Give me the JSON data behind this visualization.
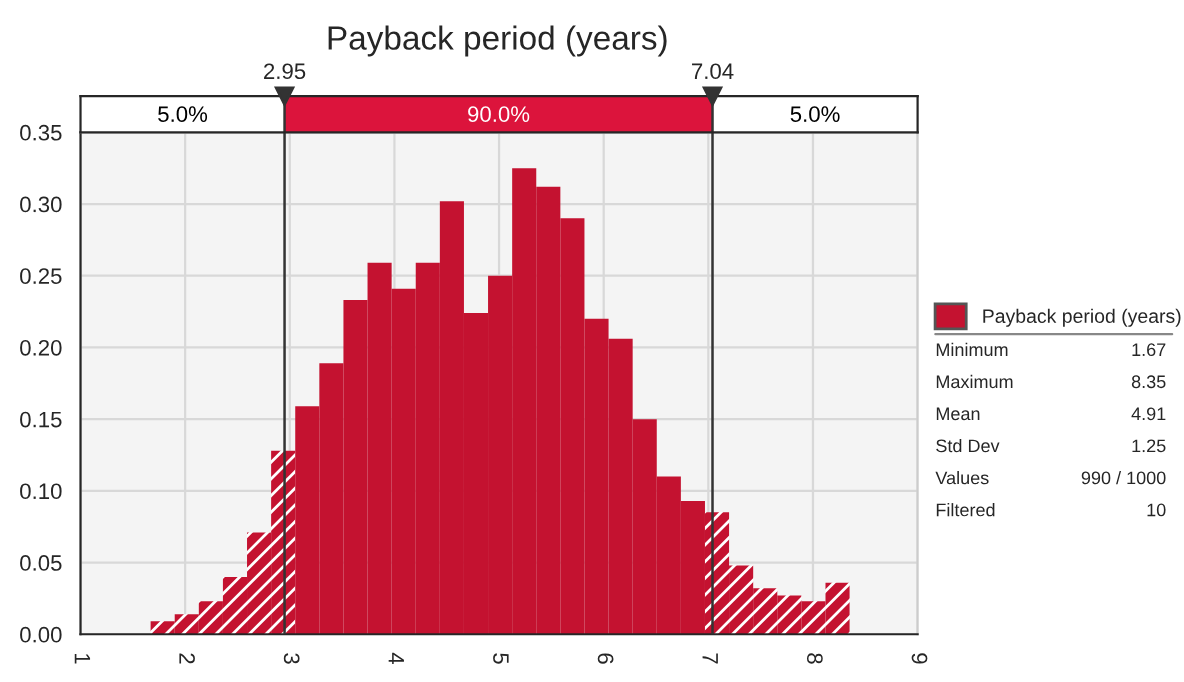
{
  "chart_data": {
    "type": "histogram",
    "title": "Payback period (years)",
    "bins": [
      1.67,
      1.9003,
      2.1307,
      2.361,
      2.5914,
      2.8217,
      3.0521,
      3.2824,
      3.5128,
      3.7431,
      3.9734,
      4.2038,
      4.4341,
      4.6645,
      4.8948,
      5.1252,
      5.3555,
      5.5859,
      5.8162,
      6.0466,
      6.2769,
      6.5072,
      6.7376,
      6.9679,
      7.1983,
      7.4286,
      7.659,
      7.8893,
      8.1197,
      8.35
    ],
    "series": [
      {
        "name": "Payback period (years)",
        "color": "#c41230",
        "values": [
          0.009,
          0.014,
          0.023,
          0.04,
          0.071,
          0.128,
          0.159,
          0.189,
          0.233,
          0.259,
          0.241,
          0.259,
          0.302,
          0.224,
          0.25,
          0.325,
          0.312,
          0.29,
          0.22,
          0.206,
          0.15,
          0.11,
          0.093,
          0.085,
          0.048,
          0.032,
          0.027,
          0.023,
          0.036
        ]
      }
    ],
    "xlim": [
      1,
      9
    ],
    "xticks": [
      1,
      2,
      3,
      4,
      5,
      6,
      7,
      8,
      9
    ],
    "ylim": [
      0,
      0.35
    ],
    "yticks": [
      {
        "value": 0,
        "label": "0.00"
      },
      {
        "value": 0.05,
        "label": "0.05"
      },
      {
        "value": 0.1,
        "label": "0.10"
      },
      {
        "value": 0.15,
        "label": "0.15"
      },
      {
        "value": 0.2,
        "label": "0.20"
      },
      {
        "value": 0.25,
        "label": "0.25"
      },
      {
        "value": 0.3,
        "label": "0.30"
      },
      {
        "value": 0.35,
        "label": "0.35"
      }
    ],
    "ref_lines": [
      {
        "axis": "x",
        "value": 2.95,
        "label": "2.95"
      },
      {
        "axis": "x",
        "value": 7.04,
        "label": "7.04"
      }
    ],
    "annotations": [
      "5.0%",
      "90.0%",
      "5.0%",
      "Minimum",
      "1.67",
      "Maximum",
      "8.35",
      "Mean",
      "4.91",
      "Std Dev",
      "1.25",
      "Values",
      "990 / 1000",
      "Filtered",
      "10"
    ],
    "grid": true,
    "legend": "right"
  }
}
